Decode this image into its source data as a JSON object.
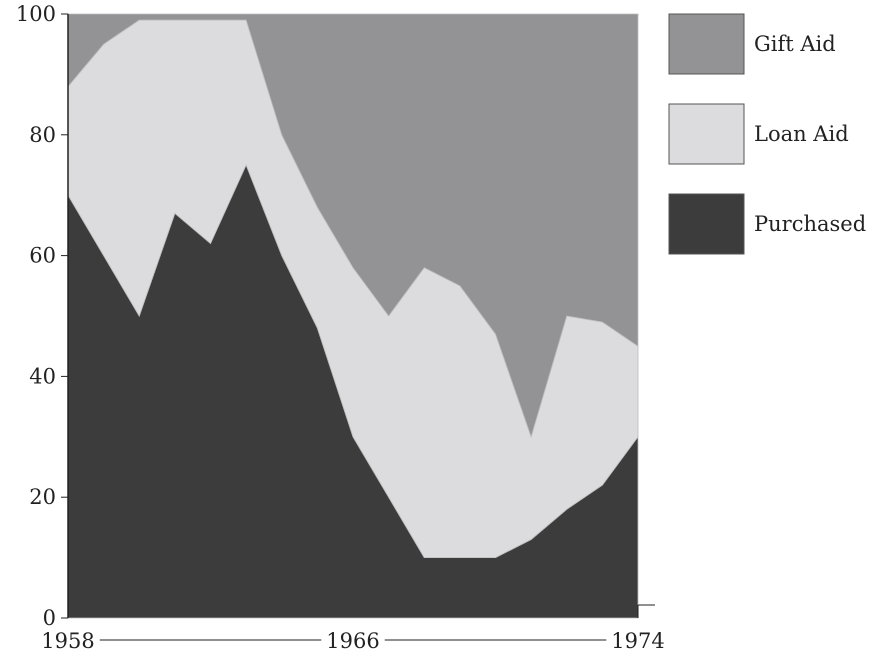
{
  "chart_data": {
    "type": "area",
    "stacked": true,
    "x": [
      1958,
      1959,
      1960,
      1961,
      1962,
      1963,
      1964,
      1965,
      1966,
      1967,
      1968,
      1969,
      1970,
      1971,
      1972,
      1973,
      1974
    ],
    "xlim": [
      1958,
      1974
    ],
    "x_tick_labels": [
      "1958",
      "1966",
      "1974"
    ],
    "x_tick_values": [
      1958,
      1966,
      1974
    ],
    "ylim": [
      0,
      100
    ],
    "y_tick_labels": [
      "0",
      "20",
      "40",
      "60",
      "80",
      "100"
    ],
    "y_tick_values": [
      0,
      20,
      40,
      60,
      80,
      100
    ],
    "series": [
      {
        "name": "Purchased",
        "color": "#3c3c3c",
        "values": [
          70,
          60,
          50,
          67,
          62,
          75,
          60,
          48,
          30,
          20,
          10,
          10,
          10,
          13,
          18,
          22,
          30
        ]
      },
      {
        "name": "Loan Aid",
        "color": "#dcdcde",
        "values": [
          18,
          35,
          49,
          32,
          37,
          24,
          20,
          20,
          28,
          30,
          48,
          45,
          37,
          17,
          32,
          27,
          15
        ]
      },
      {
        "name": "Gift Aid",
        "color": "#939395",
        "values": [
          12,
          5,
          1,
          1,
          1,
          1,
          20,
          32,
          42,
          50,
          42,
          45,
          53,
          70,
          50,
          51,
          55
        ]
      }
    ],
    "legend": {
      "position": "right",
      "items": [
        {
          "label": "Gift Aid",
          "color": "#939395"
        },
        {
          "label": "Loan Aid",
          "color": "#dcdcde"
        },
        {
          "label": "Purchased",
          "color": "#3c3c3c"
        }
      ]
    },
    "grid": false
  }
}
